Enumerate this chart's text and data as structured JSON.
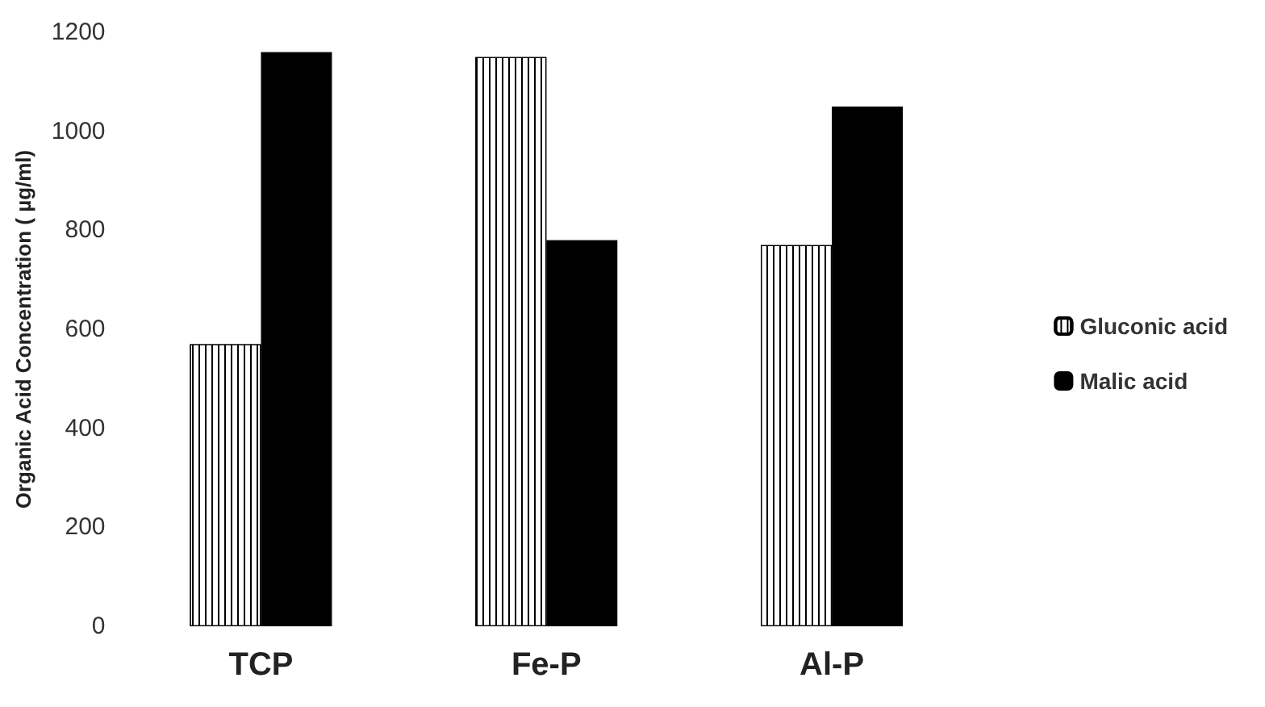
{
  "chart_data": {
    "type": "bar",
    "ylabel": "Organic Acid Concentration ( µg/ml)",
    "categories": [
      "TCP",
      "Fe-P",
      "Al-P"
    ],
    "series": [
      {
        "name": "Gluconic acid",
        "color": "#ffffff",
        "values": [
          570,
          1150,
          770
        ]
      },
      {
        "name": "Malic acid",
        "color": "#000000",
        "values": [
          1160,
          780,
          1050
        ]
      }
    ],
    "ylim": [
      0,
      1200
    ],
    "yticks": [
      0,
      200,
      400,
      600,
      800,
      1000,
      1200
    ],
    "grid": false,
    "legend": "right"
  }
}
